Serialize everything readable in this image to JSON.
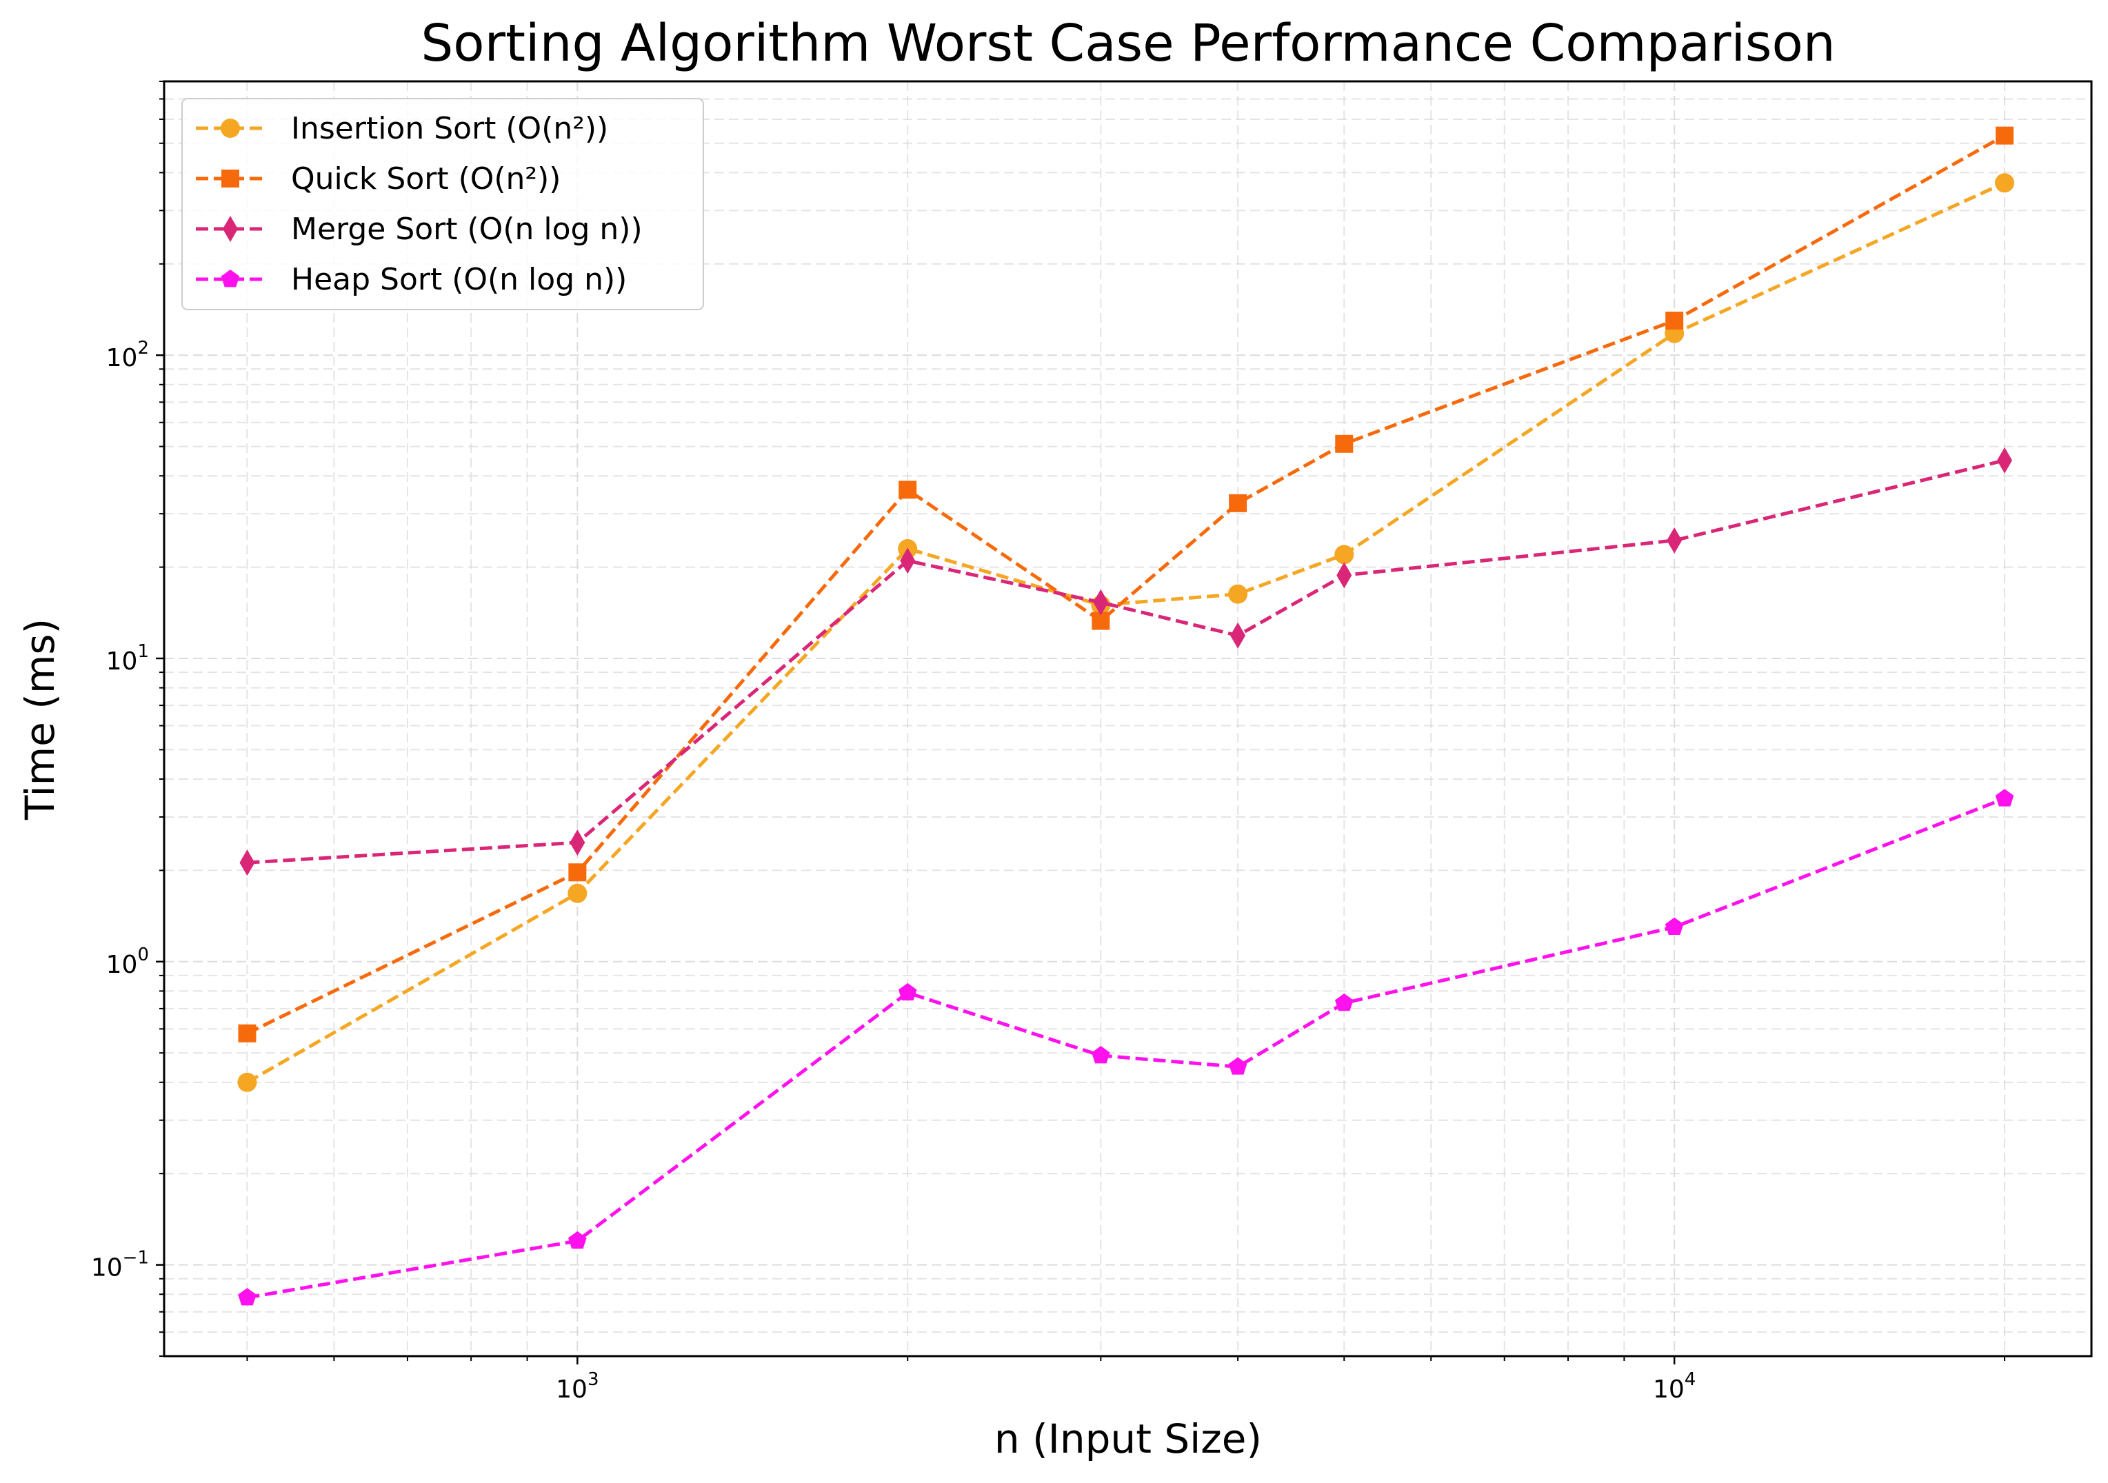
{
  "chart_data": {
    "type": "line",
    "title": "Sorting Algorithm Worst Case Performance Comparison",
    "xlabel": "n (Input Size)",
    "ylabel": "Time (ms)",
    "xscale": "log",
    "yscale": "log",
    "x": [
      500,
      1000,
      2000,
      3000,
      4000,
      5000,
      10000,
      20000
    ],
    "xlim": [
      420,
      24000
    ],
    "ylim": [
      0.05,
      800
    ],
    "x_ticks": [
      {
        "base": "10",
        "exp": "3",
        "value": 1000
      },
      {
        "base": "10",
        "exp": "4",
        "value": 10000
      }
    ],
    "y_ticks": [
      {
        "base": "10",
        "exp": "−1",
        "value": 0.1
      },
      {
        "base": "10",
        "exp": "0",
        "value": 1
      },
      {
        "base": "10",
        "exp": "1",
        "value": 10
      },
      {
        "base": "10",
        "exp": "2",
        "value": 100
      }
    ],
    "grid": true,
    "legend_position": "top-left",
    "series": [
      {
        "name": "Insertion Sort (O(n²))",
        "color": "#f5a623",
        "marker": "circle",
        "line_style": "dashed",
        "values": [
          0.4,
          1.68,
          23.0,
          15.0,
          16.3,
          22.0,
          118,
          370
        ]
      },
      {
        "name": "Quick Sort (O(n²))",
        "color": "#f76a0c",
        "marker": "square",
        "line_style": "dashed",
        "values": [
          0.58,
          1.97,
          36.0,
          13.3,
          32.5,
          51.0,
          130,
          530
        ]
      },
      {
        "name": "Merge Sort (O(n log n))",
        "color": "#d92677",
        "marker": "thin-diamond",
        "line_style": "dashed",
        "values": [
          2.12,
          2.47,
          21.0,
          15.3,
          11.9,
          18.8,
          24.5,
          45.0
        ]
      },
      {
        "name": "Heap Sort (O(n log n))",
        "color": "#ff11ee",
        "marker": "pentagon",
        "line_style": "dashed",
        "values": [
          0.078,
          0.12,
          0.79,
          0.49,
          0.45,
          0.73,
          1.3,
          3.45
        ]
      }
    ]
  }
}
